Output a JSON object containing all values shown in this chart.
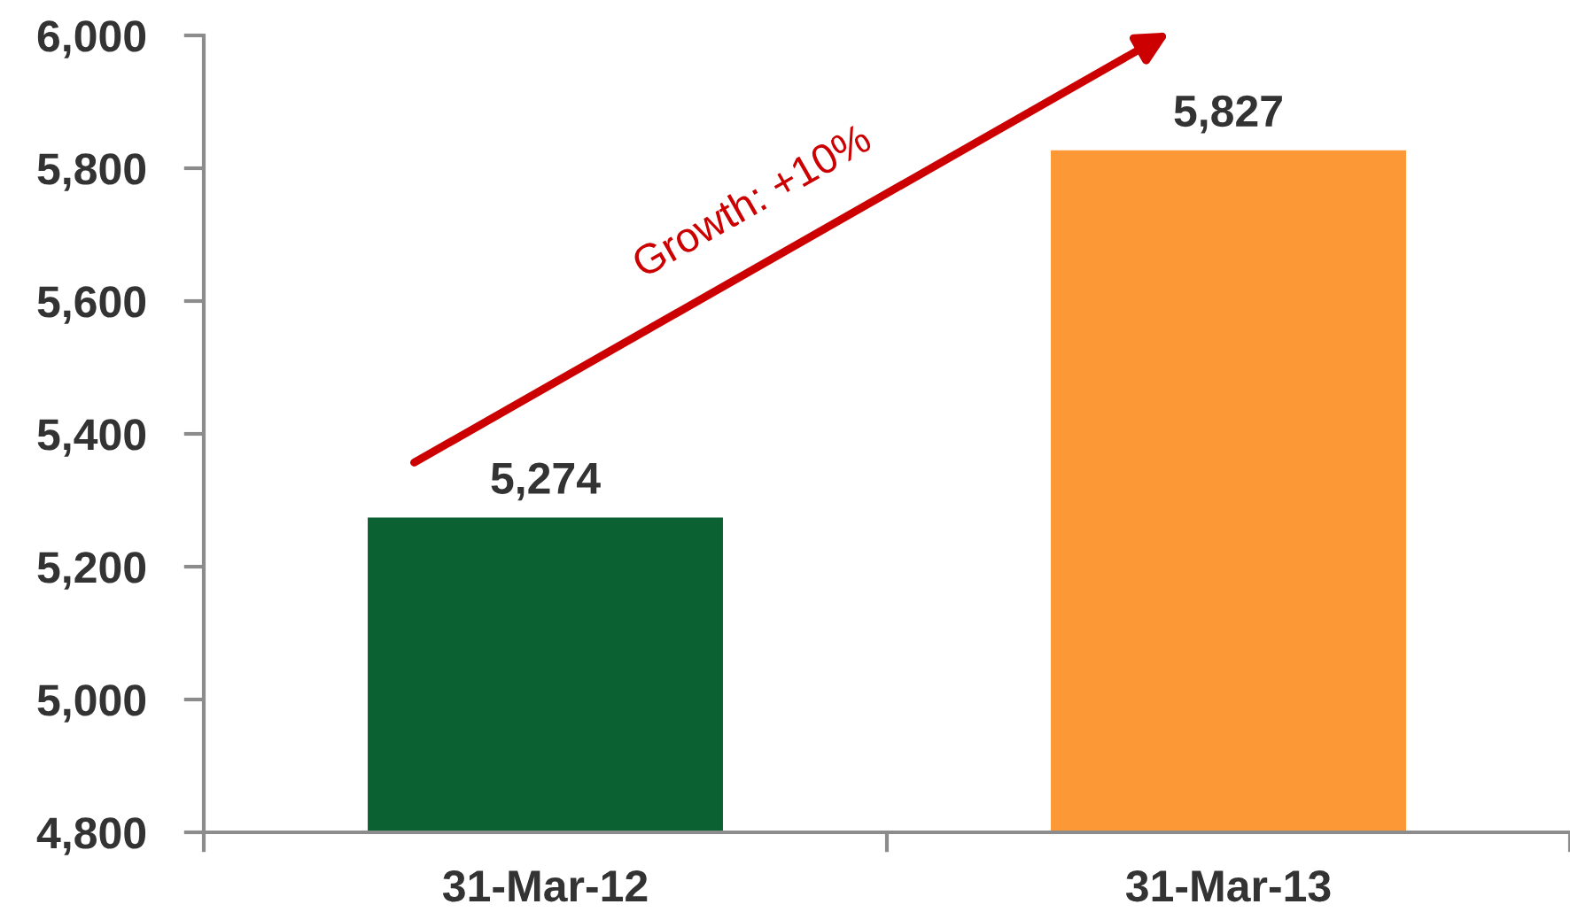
{
  "chart_data": {
    "type": "bar",
    "categories": [
      "31-Mar-12",
      "31-Mar-13"
    ],
    "values": [
      5274,
      5827
    ],
    "value_labels": [
      "5,274",
      "5,827"
    ],
    "colors": [
      "#0b6131",
      "#fd9836"
    ],
    "ylim": [
      4800,
      6000
    ],
    "yticks": [
      {
        "value": 4800,
        "label": "4,800"
      },
      {
        "value": 5000,
        "label": "5,000"
      },
      {
        "value": 5200,
        "label": "5,200"
      },
      {
        "value": 5400,
        "label": "5,400"
      },
      {
        "value": 5600,
        "label": "5,600"
      },
      {
        "value": 5800,
        "label": "5,800"
      },
      {
        "value": 6000,
        "label": "6,000"
      }
    ],
    "annotations": [
      "Growth: +10%"
    ]
  }
}
